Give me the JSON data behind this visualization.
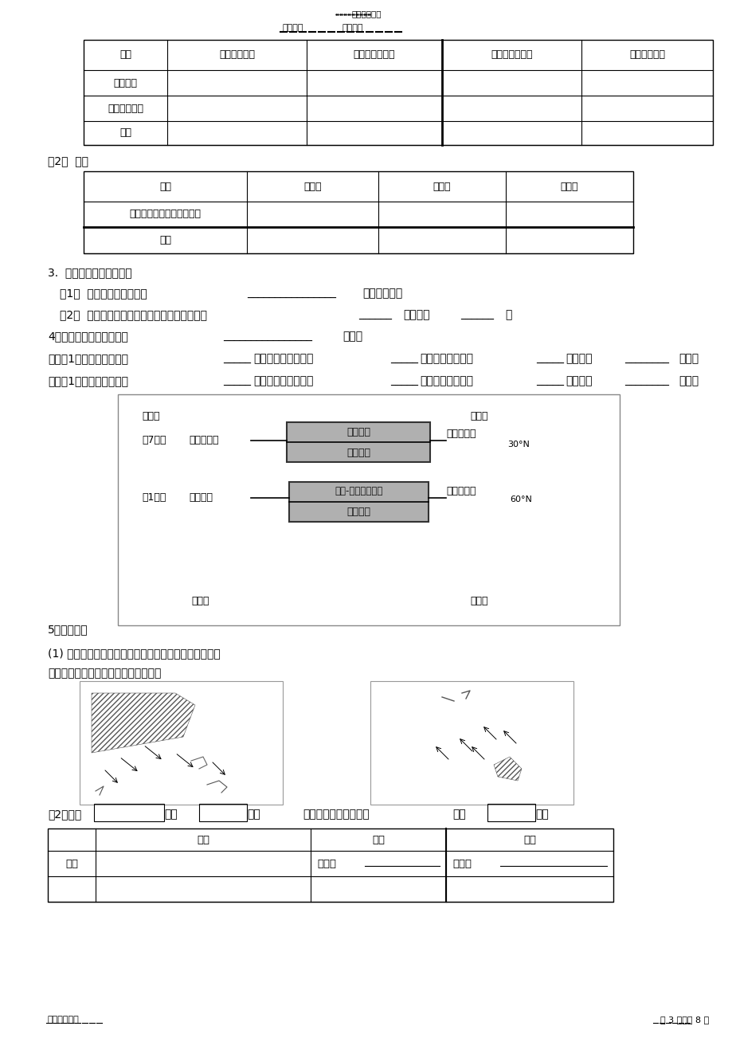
{
  "title_top": "精选学习资料",
  "subtitle_left": "学习必备",
  "subtitle_right": "欢迎下载",
  "page_footer": "名师归纳总结",
  "page_num": "第 3 页，共 8 页",
  "table1_headers": [
    "名称",
    "赤道低气压带",
    "副热带高气压带",
    "副极地低气压带",
    "极地高气压带"
  ],
  "table1_rows": [
    "成因类型",
    "气流运动方向",
    "性质"
  ],
  "section2_label": "（2）  风带",
  "table2_headers": [
    "名称",
    "信风带",
    "西风带",
    "东风带"
  ],
  "table2_rows": [
    "气流运动方向（纬度之间）",
    "性质"
  ],
  "section3_title": "3.  气压带风带的季节移动",
  "sec3_1_pre": "（1）  原因：气压带风带随",
  "sec3_1_blank": "________________",
  "sec3_1_post": "的移动而移动",
  "sec3_2_pre": "（2）  移动规律：就北半球而言，大致是夏季偏",
  "sec3_2_b1": "______",
  "sec3_2_mid": "，冬季偏",
  "sec3_2_b2": "______",
  "sec3_2_end": "。",
  "sec4_pre": "4、北半球气压中心：由于",
  "sec4_blank": "________________",
  "sec4_post": "差异；",
  "sec4_winter": "冬季（1月）亚欧大陆形成",
  "sec4_summer": "夏季（1月）亚欧大陆形成",
  "section5_title": "5、季风环流",
  "section5_1a": "(1) 在下图中分别注出亚欧大陆和北太平洋的气压名称，",
  "section5_1b": "并画出东亚和南亚的冬夏季风的风向。",
  "sec5_2": "（2）、东",
  "sec5_2b": "季（",
  "sec5_2c": "月）",
  "sec5_3": "亚季风与南亚季风比较",
  "sec5_3b": "季（",
  "sec5_3c": "月）",
  "table3_h1": "",
  "table3_h2": "成因",
  "table3_h3": "风向",
  "table3_h4": "性质",
  "table3_r1c1": "东亚",
  "table3_r1c3": "冬季：",
  "table3_r1c4": "冬季：",
  "bg_color": "#ffffff"
}
